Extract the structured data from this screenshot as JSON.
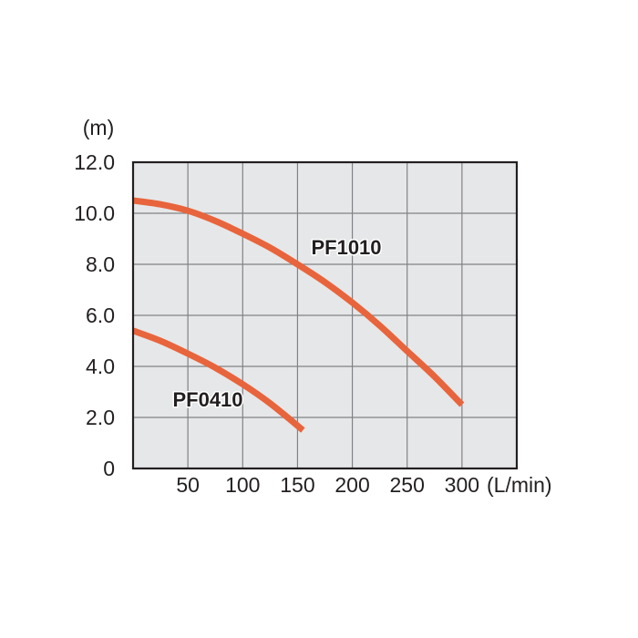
{
  "chart_data": {
    "type": "line",
    "xlabel": "(L/min)",
    "ylabel": "(m)",
    "xlim": [
      0,
      350
    ],
    "ylim": [
      0,
      12
    ],
    "x_ticks": [
      50,
      100,
      150,
      200,
      250,
      300
    ],
    "x_tick_labels": [
      "50",
      "100",
      "150",
      "200",
      "250",
      "300"
    ],
    "y_ticks": [
      0,
      2,
      4,
      6,
      8,
      10,
      12
    ],
    "y_tick_labels": [
      "0",
      "2.0",
      "4.0",
      "6.0",
      "8.0",
      "10.0",
      "12.0"
    ],
    "grid": true,
    "plot_background": "#e6e7e8",
    "grid_color": "#808285",
    "series_color": "#e8643c",
    "series": [
      {
        "name": "PF1010",
        "x": [
          0,
          25,
          50,
          75,
          100,
          125,
          150,
          175,
          200,
          225,
          250,
          275,
          300
        ],
        "y": [
          10.5,
          10.35,
          10.1,
          9.7,
          9.2,
          8.65,
          8.0,
          7.3,
          6.5,
          5.6,
          4.6,
          3.6,
          2.5
        ]
      },
      {
        "name": "PF0410",
        "x": [
          0,
          25,
          50,
          75,
          100,
          125,
          155
        ],
        "y": [
          5.4,
          5.0,
          4.5,
          3.95,
          3.3,
          2.55,
          1.5
        ]
      }
    ]
  }
}
